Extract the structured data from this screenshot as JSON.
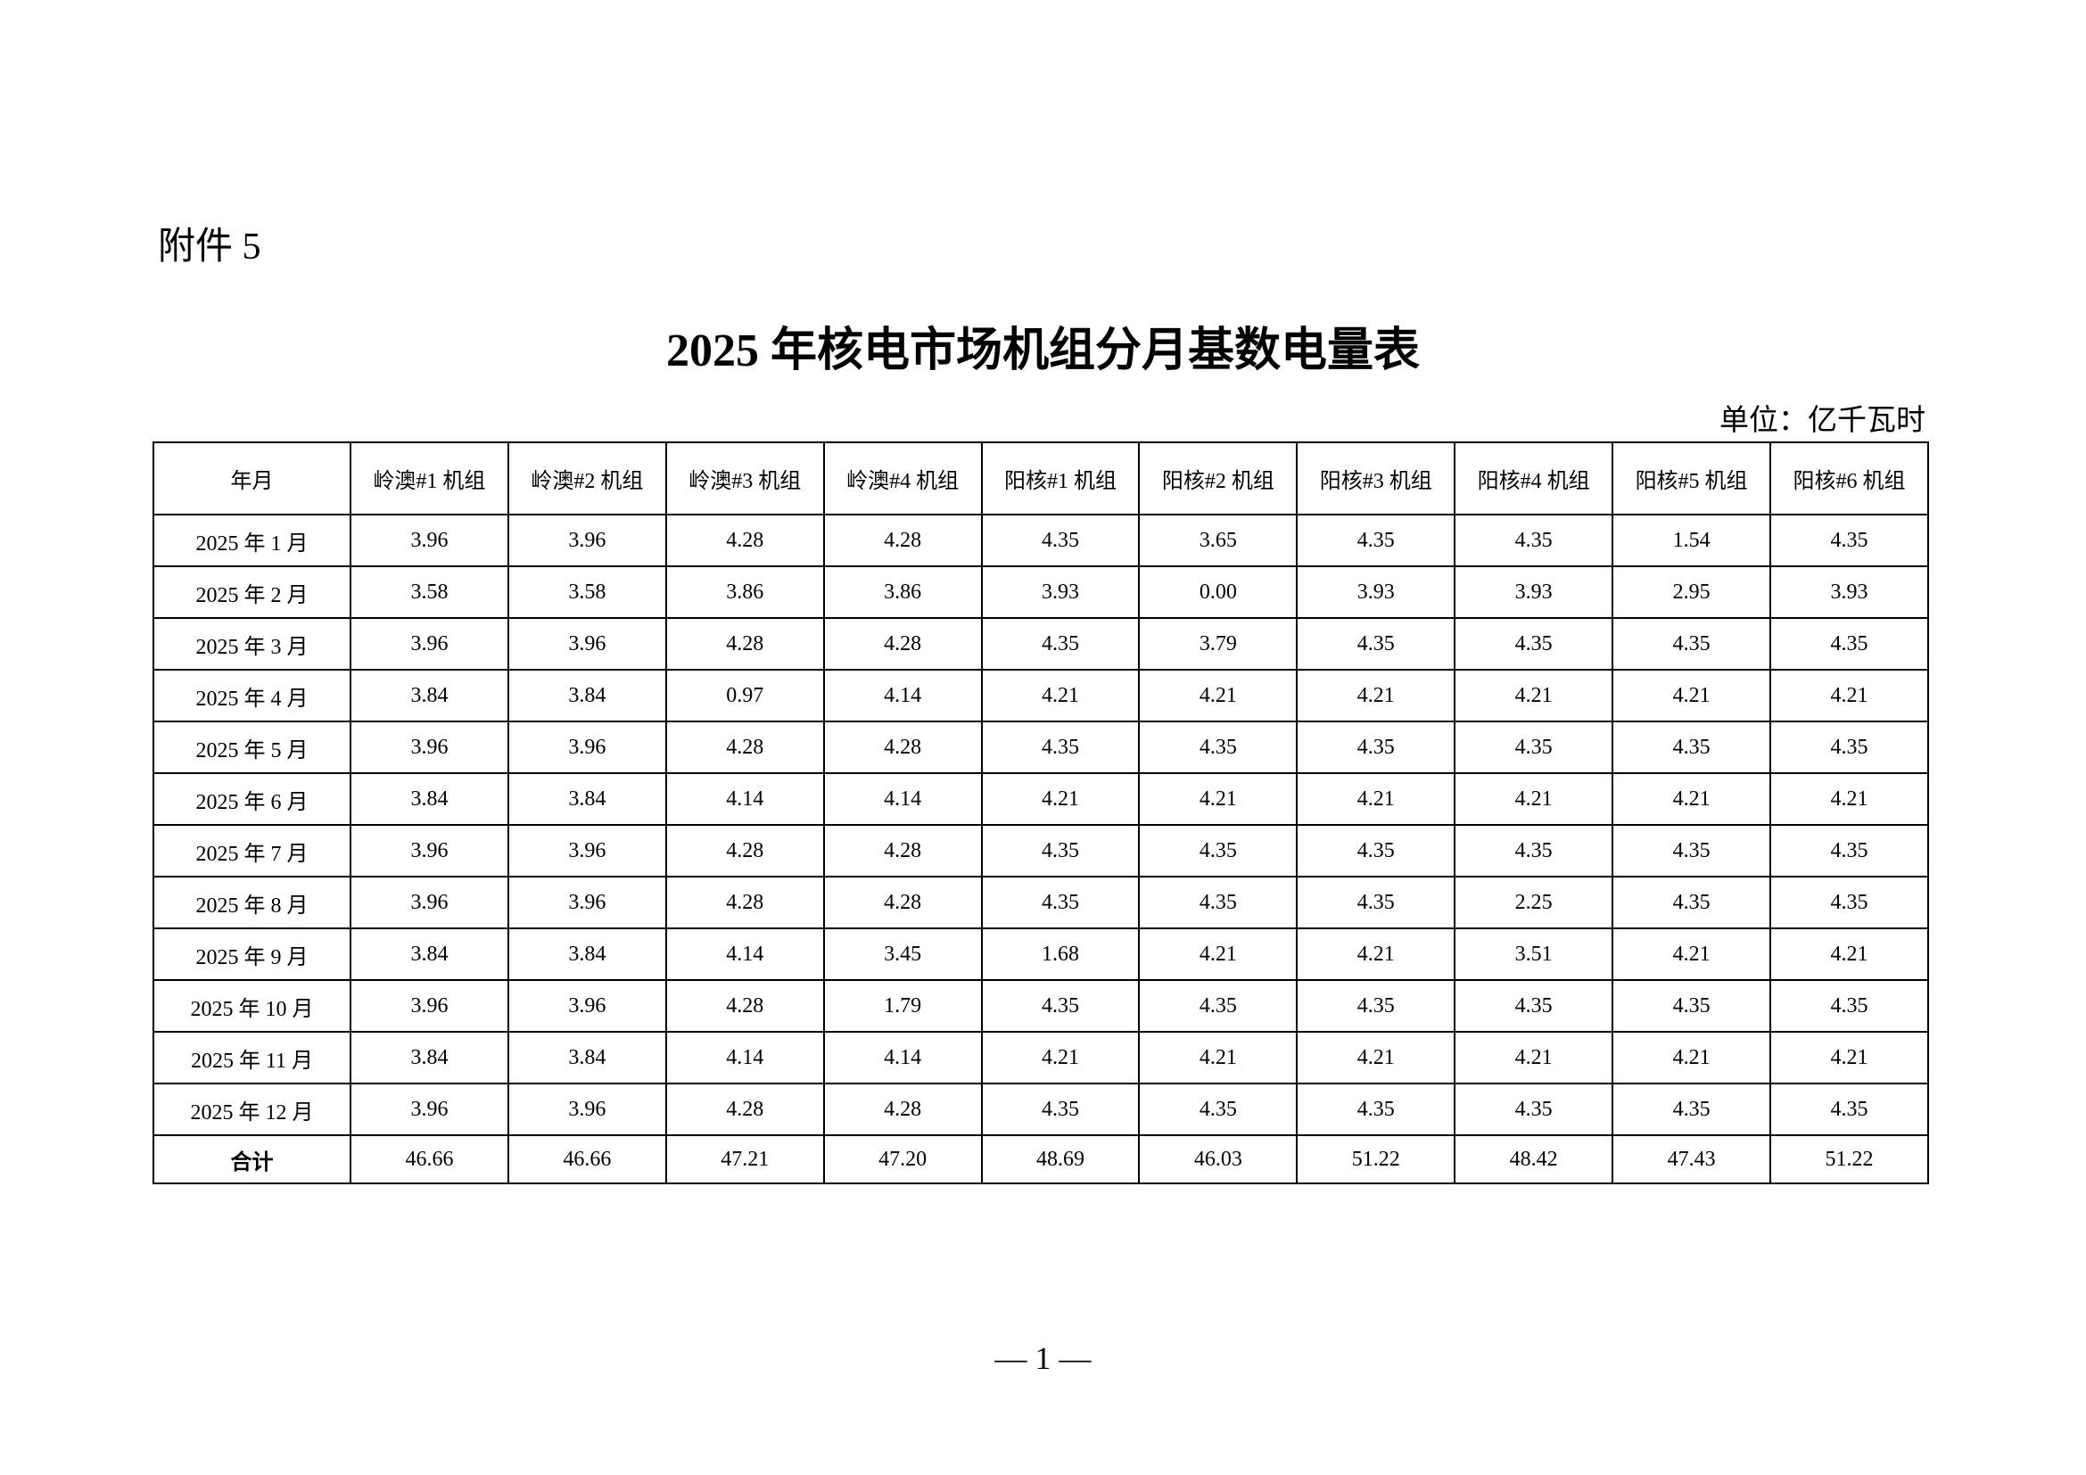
{
  "attachment_label": "附件 5",
  "title": "2025 年核电市场机组分月基数电量表",
  "unit": "单位：亿千瓦时",
  "table": {
    "headers": [
      "年月",
      "岭澳#1 机组",
      "岭澳#2 机组",
      "岭澳#3 机组",
      "岭澳#4 机组",
      "阳核#1 机组",
      "阳核#2 机组",
      "阳核#3 机组",
      "阳核#4 机组",
      "阳核#5 机组",
      "阳核#6 机组"
    ],
    "rows": [
      [
        "2025 年 1 月",
        "3.96",
        "3.96",
        "4.28",
        "4.28",
        "4.35",
        "3.65",
        "4.35",
        "4.35",
        "1.54",
        "4.35"
      ],
      [
        "2025 年 2 月",
        "3.58",
        "3.58",
        "3.86",
        "3.86",
        "3.93",
        "0.00",
        "3.93",
        "3.93",
        "2.95",
        "3.93"
      ],
      [
        "2025 年 3 月",
        "3.96",
        "3.96",
        "4.28",
        "4.28",
        "4.35",
        "3.79",
        "4.35",
        "4.35",
        "4.35",
        "4.35"
      ],
      [
        "2025 年 4 月",
        "3.84",
        "3.84",
        "0.97",
        "4.14",
        "4.21",
        "4.21",
        "4.21",
        "4.21",
        "4.21",
        "4.21"
      ],
      [
        "2025 年 5 月",
        "3.96",
        "3.96",
        "4.28",
        "4.28",
        "4.35",
        "4.35",
        "4.35",
        "4.35",
        "4.35",
        "4.35"
      ],
      [
        "2025 年 6 月",
        "3.84",
        "3.84",
        "4.14",
        "4.14",
        "4.21",
        "4.21",
        "4.21",
        "4.21",
        "4.21",
        "4.21"
      ],
      [
        "2025 年 7 月",
        "3.96",
        "3.96",
        "4.28",
        "4.28",
        "4.35",
        "4.35",
        "4.35",
        "4.35",
        "4.35",
        "4.35"
      ],
      [
        "2025 年 8 月",
        "3.96",
        "3.96",
        "4.28",
        "4.28",
        "4.35",
        "4.35",
        "4.35",
        "2.25",
        "4.35",
        "4.35"
      ],
      [
        "2025 年 9 月",
        "3.84",
        "3.84",
        "4.14",
        "3.45",
        "1.68",
        "4.21",
        "4.21",
        "3.51",
        "4.21",
        "4.21"
      ],
      [
        "2025 年 10 月",
        "3.96",
        "3.96",
        "4.28",
        "1.79",
        "4.35",
        "4.35",
        "4.35",
        "4.35",
        "4.35",
        "4.35"
      ],
      [
        "2025 年 11 月",
        "3.84",
        "3.84",
        "4.14",
        "4.14",
        "4.21",
        "4.21",
        "4.21",
        "4.21",
        "4.21",
        "4.21"
      ],
      [
        "2025 年 12 月",
        "3.96",
        "3.96",
        "4.28",
        "4.28",
        "4.35",
        "4.35",
        "4.35",
        "4.35",
        "4.35",
        "4.35"
      ]
    ],
    "total": [
      "合计",
      "46.66",
      "46.66",
      "47.21",
      "47.20",
      "48.69",
      "46.03",
      "51.22",
      "48.42",
      "47.43",
      "51.22"
    ]
  },
  "page_number": "— 1 —"
}
